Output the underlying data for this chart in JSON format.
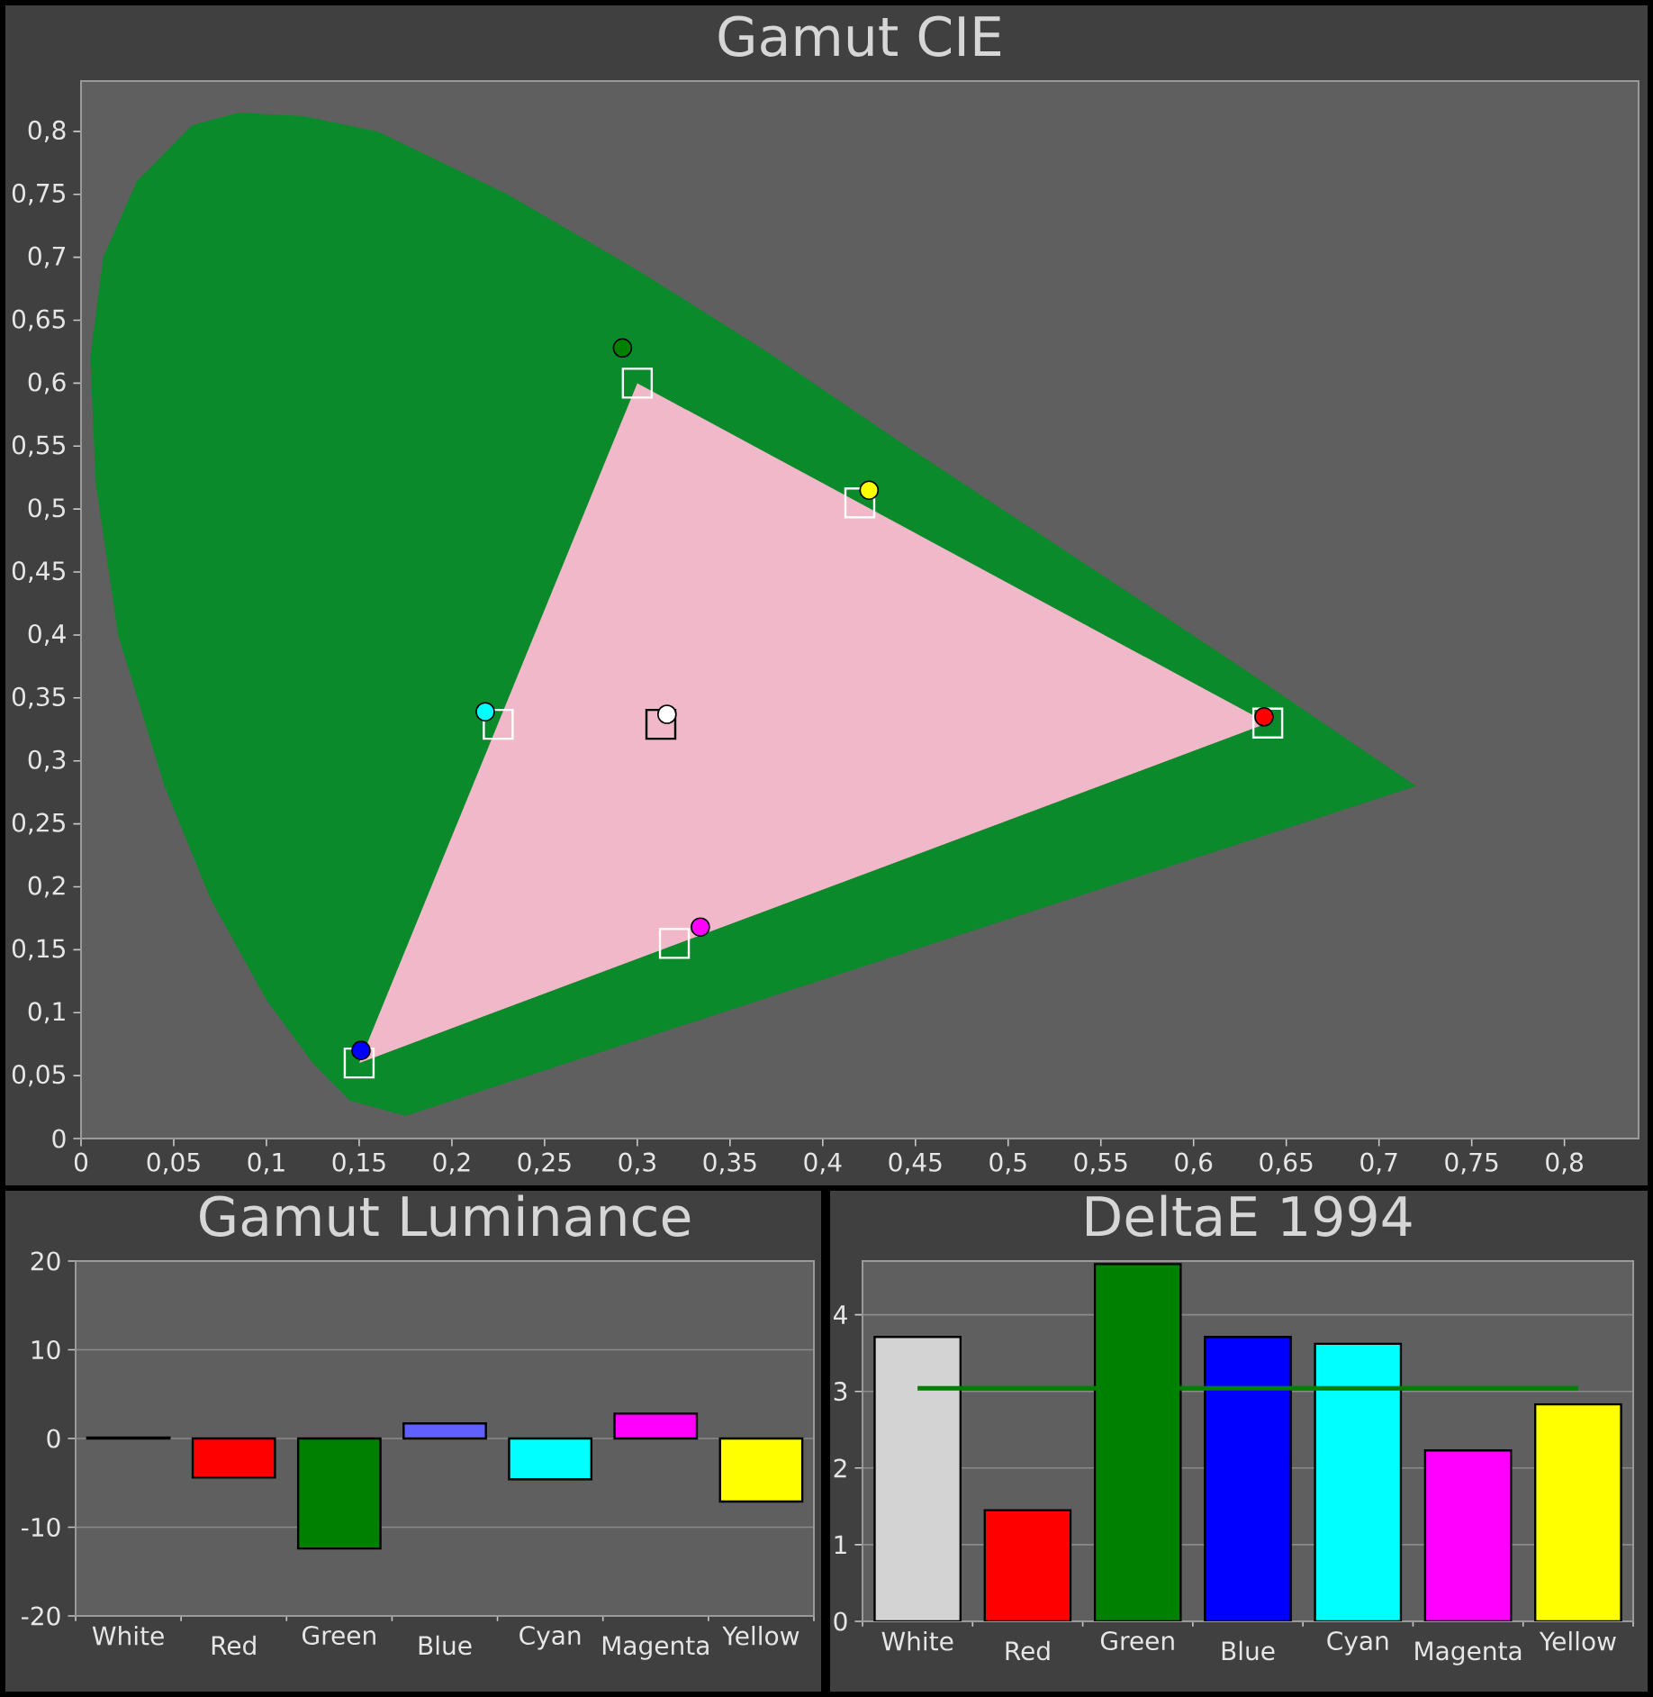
{
  "chart_data": [
    {
      "type": "scatter",
      "title": "Gamut CIE",
      "xlim": [
        0,
        0.84
      ],
      "ylim": [
        0,
        0.84
      ],
      "xticks": [
        0,
        {
          "value": 0.05,
          "label": "0,05"
        },
        {
          "value": 0.1,
          "label": "0,1"
        },
        {
          "value": 0.15,
          "label": "0,15"
        },
        {
          "value": 0.2,
          "label": "0,2"
        },
        {
          "value": 0.25,
          "label": "0,25"
        },
        {
          "value": 0.3,
          "label": "0,3"
        },
        {
          "value": 0.35,
          "label": "0,35"
        },
        {
          "value": 0.4,
          "label": "0,4"
        },
        {
          "value": 0.45,
          "label": "0,45"
        },
        {
          "value": 0.5,
          "label": "0,5"
        },
        {
          "value": 0.55,
          "label": "0,55"
        },
        {
          "value": 0.6,
          "label": "0,6"
        },
        {
          "value": 0.65,
          "label": "0,65"
        },
        {
          "value": 0.7,
          "label": "0,7"
        },
        {
          "value": 0.75,
          "label": "0,75"
        },
        {
          "value": 0.8,
          "label": "0,8"
        }
      ],
      "yticks": [
        0,
        {
          "value": 0.05,
          "label": "0,05"
        },
        {
          "value": 0.1,
          "label": "0,1"
        },
        {
          "value": 0.15,
          "label": "0,15"
        },
        {
          "value": 0.2,
          "label": "0,2"
        },
        {
          "value": 0.25,
          "label": "0,25"
        },
        {
          "value": 0.3,
          "label": "0,3"
        },
        {
          "value": 0.35,
          "label": "0,35"
        },
        {
          "value": 0.4,
          "label": "0,4"
        },
        {
          "value": 0.45,
          "label": "0,45"
        },
        {
          "value": 0.5,
          "label": "0,5"
        },
        {
          "value": 0.55,
          "label": "0,55"
        },
        {
          "value": 0.6,
          "label": "0,6"
        },
        {
          "value": 0.65,
          "label": "0,65"
        },
        {
          "value": 0.7,
          "label": "0,7"
        },
        {
          "value": 0.75,
          "label": "0,75"
        },
        {
          "value": 0.8,
          "label": "0,8"
        }
      ],
      "series": [
        {
          "type": "area",
          "color": "#0a8a2a",
          "x": [
            0.175,
            0.145,
            0.125,
            0.1,
            0.07,
            0.045,
            0.02,
            0.008,
            0.005,
            0.012,
            0.03,
            0.06,
            0.085,
            0.12,
            0.16,
            0.23,
            0.3,
            0.37,
            0.44,
            0.51,
            0.575,
            0.63,
            0.69,
            0.72
          ],
          "values": [
            0.018,
            0.03,
            0.06,
            0.11,
            0.19,
            0.28,
            0.4,
            0.52,
            0.62,
            0.7,
            0.76,
            0.805,
            0.815,
            0.812,
            0.8,
            0.75,
            0.69,
            0.625,
            0.555,
            0.487,
            0.424,
            0.37,
            0.31,
            0.28
          ]
        },
        {
          "type": "area",
          "color": "#f0b8c8",
          "x": [
            0.64,
            0.3,
            0.15
          ],
          "values": [
            0.33,
            0.6,
            0.06
          ]
        },
        {
          "type": "scatter",
          "marker": "square",
          "x": [
            0.3127,
            0.64,
            0.3,
            0.15,
            0.225,
            0.32,
            0.42
          ],
          "values": [
            0.329,
            0.33,
            0.6,
            0.06,
            0.329,
            0.155,
            0.505
          ],
          "colors": [
            "#000000",
            "#ffffff",
            "#ffffff",
            "#ffffff",
            "#ffffff",
            "#ffffff",
            "#ffffff"
          ]
        },
        {
          "type": "scatter",
          "marker": "circle",
          "x": [
            0.316,
            0.638,
            0.292,
            0.151,
            0.218,
            0.334,
            0.425
          ],
          "values": [
            0.337,
            0.335,
            0.628,
            0.07,
            0.339,
            0.168,
            0.515
          ],
          "colors": [
            "#ffffff",
            "#ff0000",
            "#008000",
            "#0000ff",
            "#00ffff",
            "#ff00ff",
            "#ffff00"
          ]
        }
      ]
    },
    {
      "type": "bar",
      "title": "Gamut Luminance",
      "categories": [
        "White",
        "Red",
        "Green",
        "Blue",
        "Cyan",
        "Magenta",
        "Yellow"
      ],
      "values": [
        0.1,
        -4.4,
        -12.4,
        1.7,
        -4.6,
        2.8,
        -7.1
      ],
      "colors": [
        "#d3d3d3",
        "#ff0000",
        "#008000",
        "#6060ff",
        "#00ffff",
        "#ff00ff",
        "#ffff00"
      ],
      "ylim": [
        -20,
        20
      ],
      "yticks": [
        -20,
        -10,
        0,
        10,
        20
      ],
      "grid": "y"
    },
    {
      "type": "bar",
      "title": "DeltaE 1994",
      "categories": [
        "White",
        "Red",
        "Green",
        "Blue",
        "Cyan",
        "Magenta",
        "Yellow"
      ],
      "values": [
        3.71,
        1.45,
        4.66,
        3.71,
        3.62,
        2.23,
        2.83
      ],
      "colors": [
        "#d3d3d3",
        "#ff0000",
        "#008000",
        "#0000ff",
        "#00ffff",
        "#ff00ff",
        "#ffff00"
      ],
      "ylim": [
        0,
        4.7
      ],
      "yticks": [
        0,
        1,
        2,
        3,
        4
      ],
      "grid": "y",
      "ref_lines": [
        {
          "axis": "y",
          "value": 3.04,
          "color": "#008000"
        }
      ]
    }
  ]
}
